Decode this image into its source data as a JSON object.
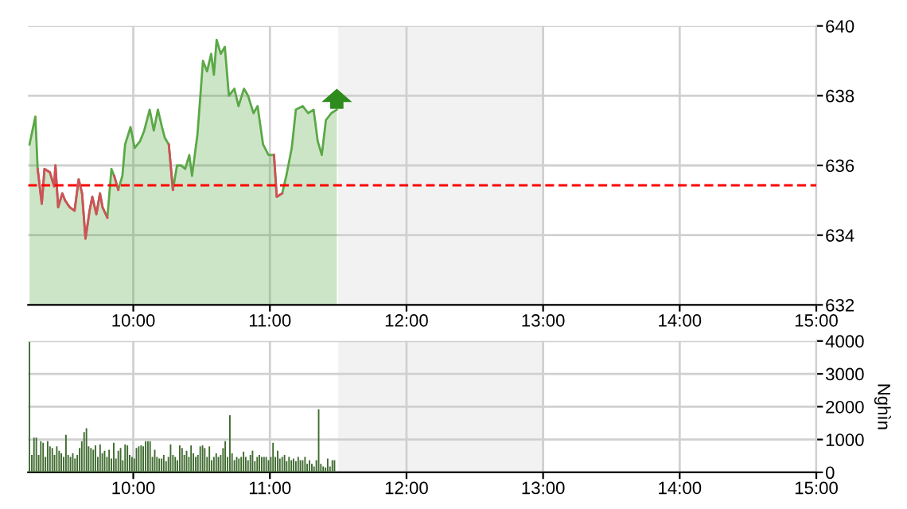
{
  "chart_data": [
    {
      "type": "area",
      "xlim": [
        9.23,
        15
      ],
      "xticks": [
        {
          "value": 10,
          "label": "10:00"
        },
        {
          "value": 11,
          "label": "11:00"
        },
        {
          "value": 12,
          "label": "12:00"
        },
        {
          "value": 13,
          "label": "13:00"
        },
        {
          "value": 14,
          "label": "14:00"
        },
        {
          "value": 15,
          "label": "15:00"
        }
      ],
      "ylim": [
        632,
        640
      ],
      "yticks": [
        632,
        634,
        636,
        638,
        640
      ],
      "grid": true,
      "x": [
        9.24,
        9.283,
        9.3,
        9.33,
        9.35,
        9.39,
        9.42,
        9.43,
        9.45,
        9.48,
        9.5,
        9.535,
        9.57,
        9.6,
        9.625,
        9.65,
        9.68,
        9.7,
        9.73,
        9.756,
        9.775,
        9.81,
        9.84,
        9.86,
        9.89,
        9.92,
        9.94,
        9.98,
        10.01,
        10.05,
        10.08,
        10.12,
        10.15,
        10.18,
        10.21,
        10.23,
        10.26,
        10.29,
        10.32,
        10.35,
        10.38,
        10.41,
        10.43,
        10.47,
        10.51,
        10.54,
        10.57,
        10.59,
        10.61,
        10.64,
        10.67,
        10.7,
        10.74,
        10.77,
        10.81,
        10.84,
        10.88,
        10.91,
        10.95,
        10.99,
        11.03,
        11.05,
        11.09,
        11.12,
        11.16,
        11.19,
        11.24,
        11.28,
        11.32,
        11.35,
        11.38,
        11.41,
        11.45,
        11.49
      ],
      "series": [
        {
          "color": "#5aa846",
          "values": [
            636.6,
            637.4,
            635.9,
            634.9,
            635.9,
            635.8,
            635.4,
            636.0,
            634.8,
            635.2,
            635.0,
            634.8,
            634.7,
            635.6,
            635.2,
            633.9,
            634.7,
            635.1,
            634.6,
            635.2,
            634.8,
            634.5,
            635.9,
            635.7,
            635.3,
            635.7,
            636.6,
            637.1,
            636.5,
            636.7,
            637.0,
            637.6,
            637.0,
            637.6,
            637.1,
            636.8,
            636.6,
            635.3,
            636.0,
            636.0,
            635.9,
            636.3,
            635.7,
            636.9,
            639.0,
            638.7,
            639.2,
            638.6,
            639.6,
            639.2,
            639.4,
            638.0,
            638.2,
            637.7,
            638.2,
            638.0,
            637.5,
            637.7,
            636.6,
            636.3,
            636.3,
            635.1,
            635.2,
            635.7,
            636.5,
            637.6,
            637.7,
            637.5,
            637.6,
            636.7,
            636.3,
            637.3,
            637.5,
            637.6
          ],
          "type": "area"
        },
        {
          "type": "line",
          "color": "#d2505a",
          "values": [
            null,
            null,
            635.9,
            634.9,
            635.9,
            635.8,
            635.4,
            636.0,
            634.8,
            635.2,
            635.0,
            634.8,
            634.7,
            635.6,
            635.2,
            633.9,
            634.7,
            635.1,
            634.6,
            635.2,
            634.8,
            634.5,
            null,
            635.7,
            635.3,
            null,
            null,
            null,
            null,
            null,
            null,
            null,
            null,
            null,
            null,
            null,
            636.6,
            635.3,
            null,
            null,
            null,
            null,
            null,
            null,
            null,
            null,
            null,
            null,
            null,
            null,
            null,
            null,
            null,
            null,
            null,
            null,
            null,
            null,
            null,
            null,
            636.3,
            635.1,
            635.2,
            null,
            null,
            null,
            null,
            null,
            null,
            null,
            null,
            null,
            null,
            null
          ]
        }
      ],
      "ref_lines": [
        {
          "axis": "y",
          "value": 635.43,
          "color": "#ff0000",
          "line_style": "dashed"
        }
      ],
      "bands": [
        {
          "axis": "x",
          "from": 11.5,
          "to": 13,
          "color": "#f2f2f2"
        }
      ]
    },
    {
      "type": "bar",
      "ylabel": "Nghìn",
      "xlim": [
        9.23,
        15
      ],
      "xticks": [
        {
          "value": 10,
          "label": "10:00"
        },
        {
          "value": 11,
          "label": "11:00"
        },
        {
          "value": 12,
          "label": "12:00"
        },
        {
          "value": 13,
          "label": "13:00"
        },
        {
          "value": 14,
          "label": "14:00"
        },
        {
          "value": 15,
          "label": "15:00"
        }
      ],
      "ylim": [
        0,
        4000
      ],
      "yticks": [
        0,
        1000,
        2000,
        3000,
        4000
      ],
      "grid": true,
      "series": [
        {
          "color": "#3e6b2f",
          "x": [
            9.24,
            9.257,
            9.273,
            9.29,
            9.307,
            9.323,
            9.34,
            9.357,
            9.373,
            9.39,
            9.407,
            9.423,
            9.44,
            9.457,
            9.473,
            9.49,
            9.507,
            9.523,
            9.54,
            9.557,
            9.573,
            9.59,
            9.607,
            9.623,
            9.64,
            9.657,
            9.673,
            9.69,
            9.707,
            9.723,
            9.74,
            9.757,
            9.773,
            9.79,
            9.807,
            9.823,
            9.84,
            9.857,
            9.873,
            9.89,
            9.907,
            9.923,
            9.94,
            9.957,
            9.973,
            9.99,
            10.007,
            10.023,
            10.04,
            10.057,
            10.073,
            10.09,
            10.107,
            10.123,
            10.14,
            10.157,
            10.173,
            10.19,
            10.207,
            10.223,
            10.24,
            10.257,
            10.273,
            10.29,
            10.307,
            10.323,
            10.34,
            10.357,
            10.373,
            10.39,
            10.407,
            10.423,
            10.44,
            10.457,
            10.473,
            10.49,
            10.507,
            10.523,
            10.54,
            10.557,
            10.573,
            10.59,
            10.607,
            10.623,
            10.64,
            10.657,
            10.673,
            10.69,
            10.707,
            10.723,
            10.74,
            10.757,
            10.773,
            10.79,
            10.807,
            10.823,
            10.84,
            10.857,
            10.873,
            10.89,
            10.907,
            10.923,
            10.94,
            10.957,
            10.973,
            10.99,
            11.007,
            11.023,
            11.04,
            11.057,
            11.073,
            11.09,
            11.107,
            11.123,
            11.14,
            11.157,
            11.173,
            11.19,
            11.207,
            11.223,
            11.24,
            11.257,
            11.273,
            11.29,
            11.307,
            11.323,
            11.34,
            11.357,
            11.373,
            11.39,
            11.407,
            11.423,
            11.44,
            11.457,
            11.473
          ],
          "values": [
            3970,
            530,
            1060,
            1060,
            530,
            950,
            900,
            470,
            950,
            790,
            740,
            530,
            790,
            660,
            580,
            470,
            1140,
            530,
            470,
            580,
            420,
            530,
            740,
            950,
            1230,
            1340,
            790,
            740,
            690,
            820,
            470,
            850,
            580,
            660,
            470,
            690,
            420,
            900,
            420,
            660,
            740,
            370,
            850,
            820,
            530,
            470,
            420,
            740,
            790,
            820,
            790,
            950,
            950,
            950,
            470,
            690,
            470,
            420,
            420,
            530,
            340,
            470,
            850,
            530,
            470,
            370,
            820,
            740,
            530,
            660,
            470,
            820,
            580,
            470,
            530,
            790,
            820,
            740,
            470,
            790,
            370,
            470,
            580,
            470,
            530,
            740,
            950,
            470,
            1740,
            580,
            370,
            470,
            420,
            470,
            630,
            470,
            370,
            530,
            660,
            340,
            470,
            530,
            470,
            470,
            470,
            370,
            470,
            900,
            470,
            660,
            420,
            470,
            530,
            340,
            470,
            370,
            420,
            340,
            470,
            370,
            370,
            470,
            260,
            370,
            260,
            180,
            370,
            1920,
            260,
            180,
            150,
            420,
            180,
            370,
            370
          ]
        }
      ],
      "bands": [
        {
          "axis": "x",
          "from": 11.5,
          "to": 13,
          "color": "#f2f2f2"
        }
      ]
    }
  ]
}
